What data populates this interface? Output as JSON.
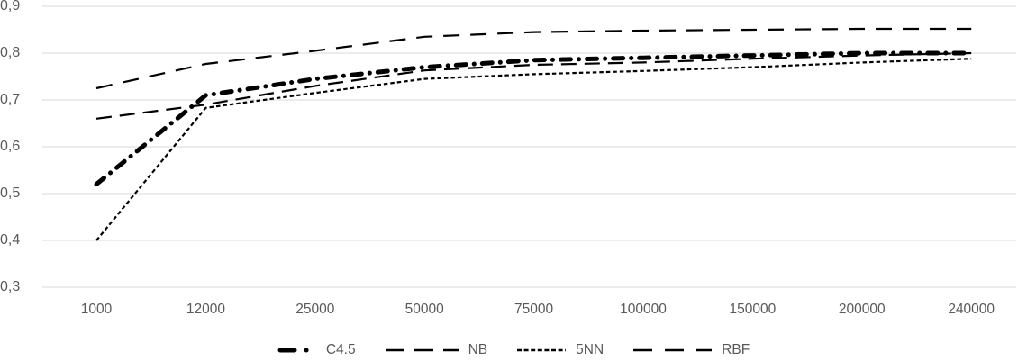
{
  "chart_data": {
    "type": "line",
    "title": "",
    "xlabel": "",
    "ylabel": "",
    "grid": "horizontal",
    "legend_position": "bottom-center",
    "background_color": "#ffffff",
    "gridline_color": "#d9d9d9",
    "label_color": "#595959",
    "line_color": "#000000",
    "ylim": [
      0.3,
      0.9
    ],
    "y_ticks": [
      {
        "label": "0,9",
        "value": 0.9
      },
      {
        "label": "0,8",
        "value": 0.8
      },
      {
        "label": "0,7",
        "value": 0.7
      },
      {
        "label": "0,6",
        "value": 0.6
      },
      {
        "label": "0,5",
        "value": 0.5
      },
      {
        "label": "0,4",
        "value": 0.4
      },
      {
        "label": "0,3",
        "value": 0.3
      }
    ],
    "x_categories": [
      "1000",
      "12000",
      "25000",
      "50000",
      "75000",
      "100000",
      "150000",
      "200000",
      "240000"
    ],
    "series": [
      {
        "name": "C4.5",
        "dash_style": "thick-long-dash-dot",
        "stroke_width": 5,
        "values": [
          0.52,
          0.71,
          0.745,
          0.77,
          0.785,
          0.79,
          0.795,
          0.8,
          0.8
        ]
      },
      {
        "name": "NB",
        "dash_style": "dash",
        "stroke_width": 2.2,
        "values": [
          0.66,
          0.69,
          0.73,
          0.763,
          0.775,
          0.78,
          0.788,
          0.795,
          0.8
        ]
      },
      {
        "name": "5NN",
        "dash_style": "dot",
        "stroke_width": 2.2,
        "values": [
          0.4,
          0.683,
          0.715,
          0.745,
          0.755,
          0.762,
          0.77,
          0.78,
          0.788
        ]
      },
      {
        "name": "RBF",
        "dash_style": "long-dash",
        "stroke_width": 2.2,
        "values": [
          0.725,
          0.777,
          0.805,
          0.835,
          0.845,
          0.848,
          0.85,
          0.852,
          0.852
        ]
      }
    ]
  }
}
